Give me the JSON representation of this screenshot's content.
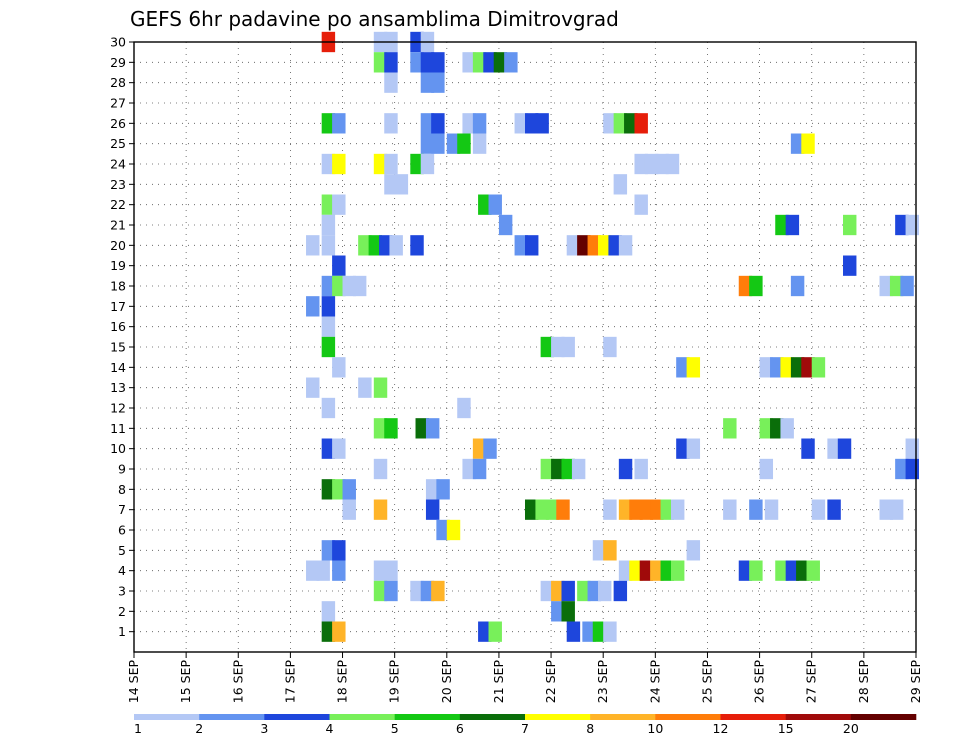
{
  "chart_data": {
    "type": "heatmap",
    "title": "GEFS 6hr padavine po ansamblima Dimitrovgrad",
    "x_ticks": [
      "14 SEP",
      "15 SEP",
      "16 SEP",
      "17 SEP",
      "18 SEP",
      "19 SEP",
      "20 SEP",
      "21 SEP",
      "22 SEP",
      "23 SEP",
      "24 SEP",
      "25 SEP",
      "26 SEP",
      "27 SEP",
      "28 SEP",
      "29 SEP"
    ],
    "x_range_days": [
      14,
      29
    ],
    "y_ticks": [
      "1",
      "2",
      "3",
      "4",
      "5",
      "6",
      "7",
      "8",
      "9",
      "10",
      "11",
      "12",
      "13",
      "14",
      "15",
      "16",
      "17",
      "18",
      "19",
      "20",
      "21",
      "22",
      "23",
      "24",
      "25",
      "26",
      "27",
      "28",
      "29",
      "30"
    ],
    "y_range": [
      0,
      30
    ],
    "grid": true,
    "levels": [
      "1",
      "2",
      "3",
      "4",
      "5",
      "6",
      "7",
      "8",
      "10",
      "12",
      "15",
      "20"
    ],
    "colors": [
      "#b4c8f5",
      "#6494f0",
      "#1e46dc",
      "#78f05a",
      "#14c814",
      "#0a6e0a",
      "#ffff00",
      "#ffb428",
      "#ff7d0a",
      "#e61e0a",
      "#a00a0a",
      "#640000"
    ],
    "cells_note": "each cell: [member, day + fraction (6h step start), color class 1-12]",
    "cells": [
      [
        30,
        17.6,
        10
      ],
      [
        30,
        18.6,
        1
      ],
      [
        30,
        18.8,
        1
      ],
      [
        30,
        19.3,
        3
      ],
      [
        30,
        19.5,
        1
      ],
      [
        29,
        18.6,
        4
      ],
      [
        29,
        18.8,
        3
      ],
      [
        29,
        19.3,
        2
      ],
      [
        29,
        19.5,
        3
      ],
      [
        29,
        19.7,
        3
      ],
      [
        29,
        20.3,
        1
      ],
      [
        29,
        20.5,
        4
      ],
      [
        29,
        20.7,
        3
      ],
      [
        29,
        20.9,
        6
      ],
      [
        29,
        21.1,
        2
      ],
      [
        28,
        18.8,
        1
      ],
      [
        28,
        19.5,
        2
      ],
      [
        28,
        19.7,
        2
      ],
      [
        26,
        17.6,
        5
      ],
      [
        26,
        17.8,
        2
      ],
      [
        26,
        18.8,
        1
      ],
      [
        26,
        19.5,
        2
      ],
      [
        26,
        19.7,
        3
      ],
      [
        26,
        20.3,
        1
      ],
      [
        26,
        20.5,
        2
      ],
      [
        26,
        21.3,
        1
      ],
      [
        26,
        21.5,
        3
      ],
      [
        26,
        21.7,
        3
      ],
      [
        26,
        23.0,
        1
      ],
      [
        26,
        23.2,
        4
      ],
      [
        26,
        23.4,
        6
      ],
      [
        26,
        23.6,
        10
      ],
      [
        25,
        19.5,
        2
      ],
      [
        25,
        19.7,
        2
      ],
      [
        25,
        20.0,
        2
      ],
      [
        25,
        20.2,
        5
      ],
      [
        25,
        20.5,
        1
      ],
      [
        25,
        26.6,
        2
      ],
      [
        25,
        26.8,
        7
      ],
      [
        24,
        17.6,
        1
      ],
      [
        24,
        17.8,
        7
      ],
      [
        24,
        18.6,
        7
      ],
      [
        24,
        18.8,
        1
      ],
      [
        24,
        19.3,
        5
      ],
      [
        24,
        19.5,
        1
      ],
      [
        24,
        23.6,
        1
      ],
      [
        24,
        23.8,
        1
      ],
      [
        24,
        24.0,
        1
      ],
      [
        24,
        24.2,
        1
      ],
      [
        23,
        18.8,
        1
      ],
      [
        23,
        19.0,
        1
      ],
      [
        23,
        23.2,
        1
      ],
      [
        22,
        17.6,
        4
      ],
      [
        22,
        17.8,
        1
      ],
      [
        22,
        20.6,
        5
      ],
      [
        22,
        20.8,
        2
      ],
      [
        22,
        23.6,
        1
      ],
      [
        21,
        17.6,
        1
      ],
      [
        21,
        21.0,
        2
      ],
      [
        21,
        26.3,
        5
      ],
      [
        21,
        26.5,
        3
      ],
      [
        21,
        27.6,
        4
      ],
      [
        21,
        28.6,
        3
      ],
      [
        21,
        28.8,
        1
      ],
      [
        20,
        17.3,
        1
      ],
      [
        20,
        17.6,
        1
      ],
      [
        20,
        18.3,
        4
      ],
      [
        20,
        18.5,
        5
      ],
      [
        20,
        18.7,
        3
      ],
      [
        20,
        18.9,
        1
      ],
      [
        20,
        19.3,
        3
      ],
      [
        20,
        21.3,
        2
      ],
      [
        20,
        21.5,
        3
      ],
      [
        20,
        22.3,
        1
      ],
      [
        20,
        22.5,
        12
      ],
      [
        20,
        22.7,
        9
      ],
      [
        20,
        22.9,
        7
      ],
      [
        20,
        23.1,
        3
      ],
      [
        20,
        23.3,
        1
      ],
      [
        19,
        17.8,
        3
      ],
      [
        19,
        27.6,
        3
      ],
      [
        18,
        17.6,
        2
      ],
      [
        18,
        17.8,
        4
      ],
      [
        18,
        18.0,
        1
      ],
      [
        18,
        18.2,
        1
      ],
      [
        18,
        25.6,
        9
      ],
      [
        18,
        25.8,
        5
      ],
      [
        18,
        26.6,
        2
      ],
      [
        18,
        28.3,
        1
      ],
      [
        18,
        28.5,
        4
      ],
      [
        18,
        28.7,
        2
      ],
      [
        17,
        17.3,
        2
      ],
      [
        17,
        17.6,
        3
      ],
      [
        16,
        17.6,
        1
      ],
      [
        15,
        17.6,
        5
      ],
      [
        15,
        21.8,
        5
      ],
      [
        15,
        22.0,
        1
      ],
      [
        15,
        22.2,
        1
      ],
      [
        15,
        23.0,
        1
      ],
      [
        14,
        17.8,
        1
      ],
      [
        14,
        24.4,
        2
      ],
      [
        14,
        24.6,
        7
      ],
      [
        14,
        26.0,
        1
      ],
      [
        14,
        26.2,
        2
      ],
      [
        14,
        26.4,
        7
      ],
      [
        14,
        26.6,
        6
      ],
      [
        14,
        26.8,
        11
      ],
      [
        14,
        27.0,
        4
      ],
      [
        13,
        17.3,
        1
      ],
      [
        13,
        18.3,
        1
      ],
      [
        13,
        18.6,
        4
      ],
      [
        12,
        17.6,
        1
      ],
      [
        12,
        20.2,
        1
      ],
      [
        11,
        18.6,
        4
      ],
      [
        11,
        18.8,
        5
      ],
      [
        11,
        19.4,
        6
      ],
      [
        11,
        19.6,
        2
      ],
      [
        11,
        25.3,
        4
      ],
      [
        11,
        26.0,
        4
      ],
      [
        11,
        26.2,
        6
      ],
      [
        11,
        26.4,
        1
      ],
      [
        10,
        17.6,
        3
      ],
      [
        10,
        17.8,
        1
      ],
      [
        10,
        20.5,
        8
      ],
      [
        10,
        20.7,
        2
      ],
      [
        10,
        24.4,
        3
      ],
      [
        10,
        24.6,
        1
      ],
      [
        10,
        26.8,
        3
      ],
      [
        10,
        27.3,
        1
      ],
      [
        10,
        27.5,
        3
      ],
      [
        10,
        28.8,
        1
      ],
      [
        9,
        18.6,
        1
      ],
      [
        9,
        20.3,
        1
      ],
      [
        9,
        20.5,
        2
      ],
      [
        9,
        21.8,
        4
      ],
      [
        9,
        22.0,
        6
      ],
      [
        9,
        22.2,
        5
      ],
      [
        9,
        22.4,
        1
      ],
      [
        9,
        23.3,
        3
      ],
      [
        9,
        23.6,
        1
      ],
      [
        9,
        26.0,
        1
      ],
      [
        9,
        28.6,
        2
      ],
      [
        9,
        28.8,
        3
      ],
      [
        8,
        17.6,
        6
      ],
      [
        8,
        17.8,
        4
      ],
      [
        8,
        18.0,
        2
      ],
      [
        8,
        19.6,
        1
      ],
      [
        8,
        19.8,
        2
      ],
      [
        7,
        18.0,
        1
      ],
      [
        7,
        18.6,
        8
      ],
      [
        7,
        19.6,
        3
      ],
      [
        7,
        21.5,
        6
      ],
      [
        7,
        21.7,
        4
      ],
      [
        7,
        21.9,
        4
      ],
      [
        7,
        22.1,
        9
      ],
      [
        7,
        23.0,
        1
      ],
      [
        7,
        23.3,
        8
      ],
      [
        7,
        23.5,
        9
      ],
      [
        7,
        23.7,
        9
      ],
      [
        7,
        23.9,
        9
      ],
      [
        7,
        24.1,
        4
      ],
      [
        7,
        24.3,
        1
      ],
      [
        7,
        25.3,
        1
      ],
      [
        7,
        25.8,
        2
      ],
      [
        7,
        26.1,
        1
      ],
      [
        7,
        27.0,
        1
      ],
      [
        7,
        27.3,
        3
      ],
      [
        7,
        28.3,
        1
      ],
      [
        7,
        28.5,
        1
      ],
      [
        6,
        19.8,
        2
      ],
      [
        6,
        20.0,
        7
      ],
      [
        5,
        17.6,
        2
      ],
      [
        5,
        17.8,
        3
      ],
      [
        5,
        22.8,
        1
      ],
      [
        5,
        23.0,
        8
      ],
      [
        5,
        24.6,
        1
      ],
      [
        4,
        17.3,
        1
      ],
      [
        4,
        17.5,
        1
      ],
      [
        4,
        17.8,
        2
      ],
      [
        4,
        18.6,
        1
      ],
      [
        4,
        18.8,
        1
      ],
      [
        4,
        23.3,
        1
      ],
      [
        4,
        23.5,
        7
      ],
      [
        4,
        23.7,
        11
      ],
      [
        4,
        23.9,
        8
      ],
      [
        4,
        24.1,
        5
      ],
      [
        4,
        24.3,
        4
      ],
      [
        4,
        25.6,
        3
      ],
      [
        4,
        25.8,
        4
      ],
      [
        4,
        26.3,
        4
      ],
      [
        4,
        26.5,
        3
      ],
      [
        4,
        26.7,
        6
      ],
      [
        4,
        26.9,
        4
      ],
      [
        3,
        18.6,
        4
      ],
      [
        3,
        18.8,
        2
      ],
      [
        3,
        19.3,
        1
      ],
      [
        3,
        19.5,
        2
      ],
      [
        3,
        19.7,
        8
      ],
      [
        3,
        21.8,
        1
      ],
      [
        3,
        22.0,
        8
      ],
      [
        3,
        22.2,
        3
      ],
      [
        3,
        22.5,
        4
      ],
      [
        3,
        22.7,
        2
      ],
      [
        3,
        22.9,
        1
      ],
      [
        3,
        23.2,
        3
      ],
      [
        2,
        17.6,
        1
      ],
      [
        2,
        22.0,
        2
      ],
      [
        2,
        22.2,
        6
      ],
      [
        1,
        17.6,
        6
      ],
      [
        1,
        17.8,
        8
      ],
      [
        1,
        20.6,
        3
      ],
      [
        1,
        20.8,
        4
      ],
      [
        1,
        22.3,
        3
      ],
      [
        1,
        22.6,
        2
      ],
      [
        1,
        22.8,
        5
      ],
      [
        1,
        23.0,
        1
      ]
    ]
  }
}
